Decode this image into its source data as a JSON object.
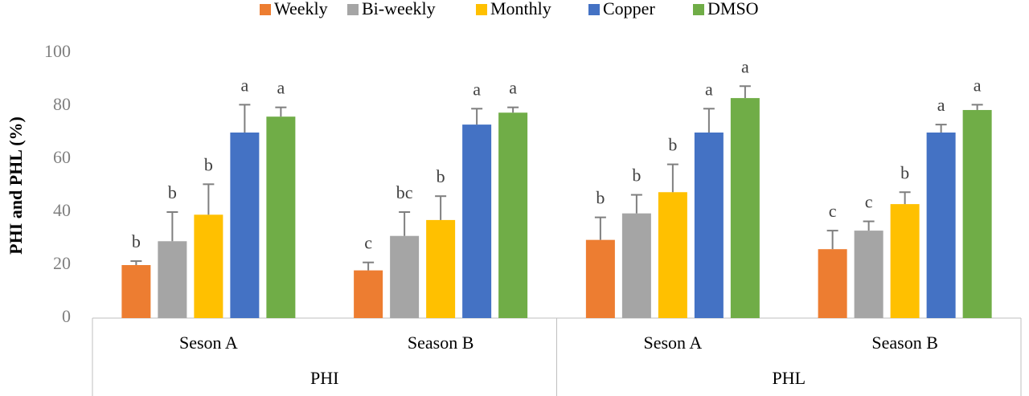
{
  "chart_data": {
    "type": "bar",
    "y_label": "PHI and PHL (%)",
    "groups": [
      {
        "name": "PHI",
        "categories": [
          "Seson A",
          "Season B"
        ]
      },
      {
        "name": "PHL",
        "categories": [
          "Seson A",
          "Season B"
        ]
      }
    ],
    "series": [
      {
        "name": "Weekly",
        "color": "#ed7d31",
        "values": [
          20,
          18,
          29.5,
          26
        ],
        "errors": [
          1.5,
          3,
          8.5,
          7
        ],
        "letters": [
          "b",
          "c",
          "b",
          "c"
        ]
      },
      {
        "name": "Bi-weekly",
        "color": "#a5a5a5",
        "values": [
          29,
          31,
          39.5,
          33
        ],
        "errors": [
          11,
          9,
          7,
          3.5
        ],
        "letters": [
          "b",
          "bc",
          "b",
          "c"
        ]
      },
      {
        "name": "Monthly",
        "color": "#ffc000",
        "values": [
          39,
          37,
          47.5,
          43
        ],
        "errors": [
          11.5,
          9,
          10.5,
          4.5
        ],
        "letters": [
          "b",
          "b",
          "b",
          "b"
        ]
      },
      {
        "name": "Copper",
        "color": "#4472c4",
        "values": [
          70,
          73,
          70,
          70
        ],
        "errors": [
          10.5,
          6,
          9,
          3
        ],
        "letters": [
          "a",
          "a",
          "a",
          "a"
        ]
      },
      {
        "name": "DMSO",
        "color": "#70ad47",
        "values": [
          76,
          77.5,
          83,
          78.5
        ],
        "errors": [
          3.5,
          2,
          4.5,
          2
        ],
        "letters": [
          "a",
          "a",
          "a",
          "a"
        ]
      }
    ],
    "ylim": [
      0,
      100
    ],
    "yticks": [
      0,
      20,
      40,
      60,
      80,
      100
    ],
    "grid": false,
    "legend": "top"
  }
}
